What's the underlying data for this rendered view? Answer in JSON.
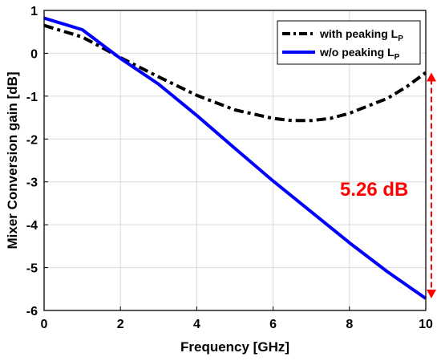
{
  "chart_data": {
    "type": "line",
    "title": "",
    "xlabel": "Frequency [GHz]",
    "ylabel": "Mixer Conversion gain [dB]",
    "xlim": [
      0,
      10
    ],
    "ylim": [
      -6,
      1
    ],
    "xticks": [
      0,
      2,
      4,
      6,
      8,
      10
    ],
    "yticks": [
      1,
      0,
      -1,
      -2,
      -3,
      -4,
      -5,
      -6
    ],
    "grid": true,
    "legend_position": "top-right",
    "series": [
      {
        "name": "with peaking L",
        "name_subscript": "P",
        "style": "dash-dot",
        "color": "#000000",
        "x": [
          0,
          1,
          2,
          3,
          4,
          5,
          6,
          6.5,
          7,
          7.5,
          8,
          9,
          9.5,
          10
        ],
        "y": [
          0.65,
          0.38,
          -0.1,
          -0.55,
          -0.98,
          -1.32,
          -1.52,
          -1.57,
          -1.57,
          -1.52,
          -1.4,
          -1.05,
          -0.78,
          -0.45
        ]
      },
      {
        "name": "w/o peaking L",
        "name_subscript": "P",
        "style": "solid",
        "color": "#0000ff",
        "x": [
          0,
          1,
          2,
          3,
          4,
          5,
          6,
          7,
          8,
          9,
          10
        ],
        "y": [
          0.82,
          0.55,
          -0.12,
          -0.72,
          -1.45,
          -2.22,
          -2.98,
          -3.7,
          -4.42,
          -5.1,
          -5.72
        ]
      }
    ],
    "annotations": [
      {
        "text": "5.26 dB",
        "color": "#ff0000",
        "arrow_x": 10,
        "arrow_y_from": -0.45,
        "arrow_y_to": -5.72
      }
    ]
  }
}
